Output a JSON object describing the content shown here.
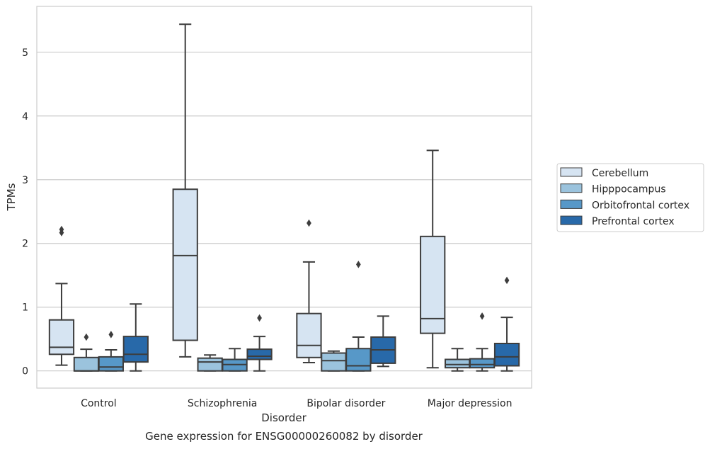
{
  "chart_data": {
    "type": "boxplot",
    "title": "",
    "caption": "Gene expression for ENSG00000260082 by disorder",
    "xlabel": "Disorder",
    "ylabel": "TPMs",
    "ylim": [
      -0.27,
      5.72
    ],
    "yticks": [
      0,
      1,
      2,
      3,
      4,
      5
    ],
    "grid": "horizontal",
    "legend_position": "right",
    "categories": [
      "Control",
      "Schizophrenia",
      "Bipolar disorder",
      "Major depression"
    ],
    "series": [
      {
        "name": "Cerebellum",
        "color": "#d6e4f2",
        "boxes": [
          {
            "whislo": 0.09,
            "q1": 0.26,
            "med": 0.37,
            "q3": 0.8,
            "whishi": 1.37,
            "fliers": [
              2.17,
              2.22
            ]
          },
          {
            "whislo": 0.22,
            "q1": 0.48,
            "med": 1.81,
            "q3": 2.85,
            "whishi": 5.44,
            "fliers": []
          },
          {
            "whislo": 0.13,
            "q1": 0.21,
            "med": 0.4,
            "q3": 0.9,
            "whishi": 1.71,
            "fliers": [
              2.32
            ]
          },
          {
            "whislo": 0.05,
            "q1": 0.59,
            "med": 0.82,
            "q3": 2.11,
            "whishi": 3.46,
            "fliers": []
          }
        ]
      },
      {
        "name": "Hipppocampus",
        "color": "#9bc3dd",
        "boxes": [
          {
            "whislo": 0.0,
            "q1": 0.0,
            "med": 0.0,
            "q3": 0.21,
            "whishi": 0.34,
            "fliers": [
              0.53
            ]
          },
          {
            "whislo": 0.0,
            "q1": 0.0,
            "med": 0.14,
            "q3": 0.2,
            "whishi": 0.25,
            "fliers": []
          },
          {
            "whislo": 0.0,
            "q1": 0.0,
            "med": 0.16,
            "q3": 0.28,
            "whishi": 0.31,
            "fliers": []
          },
          {
            "whislo": 0.0,
            "q1": 0.05,
            "med": 0.1,
            "q3": 0.18,
            "whishi": 0.35,
            "fliers": []
          }
        ]
      },
      {
        "name": "Orbitofrontal cortex",
        "color": "#5798c8",
        "boxes": [
          {
            "whislo": 0.0,
            "q1": 0.0,
            "med": 0.06,
            "q3": 0.22,
            "whishi": 0.33,
            "fliers": [
              0.57
            ]
          },
          {
            "whislo": 0.0,
            "q1": 0.0,
            "med": 0.1,
            "q3": 0.18,
            "whishi": 0.35,
            "fliers": []
          },
          {
            "whislo": 0.0,
            "q1": 0.0,
            "med": 0.08,
            "q3": 0.35,
            "whishi": 0.53,
            "fliers": [
              1.67
            ]
          },
          {
            "whislo": 0.0,
            "q1": 0.05,
            "med": 0.1,
            "q3": 0.19,
            "whishi": 0.35,
            "fliers": [
              0.86
            ]
          }
        ]
      },
      {
        "name": "Prefrontal cortex",
        "color": "#2869a9",
        "boxes": [
          {
            "whislo": 0.0,
            "q1": 0.14,
            "med": 0.26,
            "q3": 0.54,
            "whishi": 1.05,
            "fliers": []
          },
          {
            "whislo": 0.0,
            "q1": 0.18,
            "med": 0.23,
            "q3": 0.34,
            "whishi": 0.54,
            "fliers": [
              0.83
            ]
          },
          {
            "whislo": 0.07,
            "q1": 0.12,
            "med": 0.33,
            "q3": 0.53,
            "whishi": 0.86,
            "fliers": []
          },
          {
            "whislo": 0.0,
            "q1": 0.08,
            "med": 0.22,
            "q3": 0.43,
            "whishi": 0.84,
            "fliers": [
              1.42
            ]
          }
        ]
      }
    ]
  }
}
